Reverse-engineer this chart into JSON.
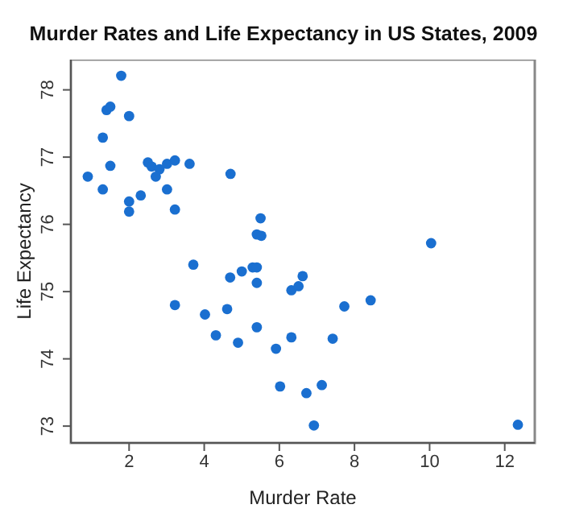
{
  "chart_data": {
    "type": "scatter",
    "title": "Murder Rates and Life Expectancy in US States, 2009",
    "xlabel": "Murder Rate",
    "ylabel": "Life Expectancy",
    "x": [
      1.79,
      1.4,
      1.5,
      2.0,
      1.3,
      1.5,
      0.9,
      1.3,
      2.0,
      2.0,
      2.31,
      2.5,
      2.6,
      2.81,
      2.71,
      3.01,
      3.22,
      3.61,
      3.01,
      3.22,
      4.7,
      5.5,
      5.4,
      5.52,
      3.71,
      4.69,
      5.0,
      5.29,
      5.4,
      5.4,
      3.22,
      4.02,
      4.61,
      5.4,
      4.31,
      4.9,
      6.32,
      6.51,
      6.62,
      6.32,
      5.91,
      6.02,
      6.72,
      10.04,
      7.73,
      8.43,
      7.42,
      7.13,
      6.92,
      12.35
    ],
    "series": [
      {
        "color": "#1a6fd0",
        "values": [
          78.21,
          77.7,
          77.75,
          77.61,
          77.29,
          76.87,
          76.71,
          76.52,
          76.34,
          76.19,
          76.43,
          76.92,
          76.86,
          76.82,
          76.71,
          76.9,
          76.95,
          76.9,
          76.52,
          76.22,
          76.75,
          76.09,
          75.85,
          75.83,
          75.4,
          75.21,
          75.3,
          75.36,
          75.36,
          75.13,
          74.8,
          74.66,
          74.74,
          74.47,
          74.35,
          74.24,
          75.02,
          75.08,
          75.23,
          74.32,
          74.15,
          73.59,
          73.49,
          75.72,
          74.78,
          74.87,
          74.3,
          73.61,
          73.01,
          73.02
        ]
      }
    ],
    "xlim": [
      0.45,
      12.8
    ],
    "xticks": [
      2,
      4,
      6,
      8,
      10,
      12
    ],
    "ylim": [
      72.75,
      78.45
    ],
    "yticks": [
      73,
      74,
      75,
      76,
      77,
      78
    ],
    "marker": "circle",
    "grid": false,
    "legend": false
  }
}
